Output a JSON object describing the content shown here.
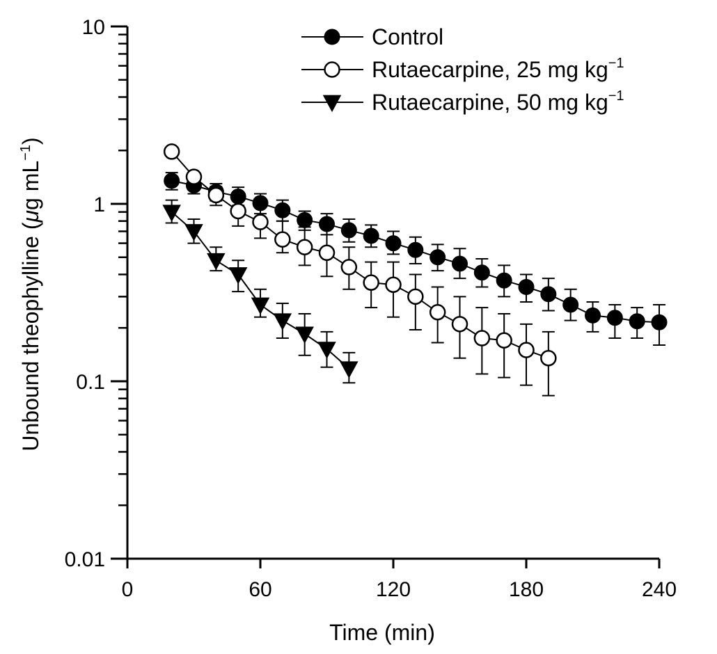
{
  "chart_data": {
    "type": "line",
    "xlabel": "Time (min)",
    "ylabel": {
      "main": "Unbound theophylline (",
      "mu": "μ",
      "unit": "g mL",
      "sup": "−1",
      "close": ")"
    },
    "xlim": [
      0,
      240
    ],
    "ylim": [
      0.01,
      10
    ],
    "yscale": "log",
    "xticks": [
      0,
      60,
      120,
      180,
      240
    ],
    "xtick_labels": [
      "0",
      "60",
      "120",
      "180",
      "240"
    ],
    "yticks": [
      0.01,
      0.1,
      1,
      10
    ],
    "ytick_labels": [
      "0.01",
      "0.1",
      "1",
      "10"
    ],
    "grid": false,
    "legend_position": "top-right",
    "series": [
      {
        "name": "Control",
        "name_sup": "",
        "marker": "filled-circle",
        "x": [
          20,
          30,
          40,
          50,
          60,
          70,
          80,
          90,
          100,
          110,
          120,
          130,
          140,
          150,
          160,
          170,
          180,
          190,
          200,
          210,
          220,
          230,
          240
        ],
        "y": [
          1.35,
          1.27,
          1.17,
          1.1,
          1.01,
          0.92,
          0.81,
          0.77,
          0.71,
          0.66,
          0.6,
          0.55,
          0.5,
          0.46,
          0.41,
          0.37,
          0.34,
          0.31,
          0.27,
          0.235,
          0.228,
          0.218,
          0.215
        ],
        "err_up": [
          1.5,
          1.4,
          1.3,
          1.24,
          1.14,
          1.05,
          0.91,
          0.88,
          0.82,
          0.76,
          0.7,
          0.65,
          0.59,
          0.56,
          0.49,
          0.45,
          0.4,
          0.38,
          0.33,
          0.28,
          0.27,
          0.26,
          0.27
        ],
        "err_down": [
          1.2,
          1.14,
          1.04,
          0.98,
          0.88,
          0.8,
          0.71,
          0.67,
          0.61,
          0.57,
          0.52,
          0.46,
          0.42,
          0.38,
          0.34,
          0.3,
          0.28,
          0.25,
          0.22,
          0.19,
          0.175,
          0.175,
          0.16
        ]
      },
      {
        "name": "Rutaecarpine, 25 mg kg",
        "name_sup": "−1",
        "marker": "open-circle",
        "x": [
          20,
          30,
          40,
          50,
          60,
          70,
          80,
          90,
          100,
          110,
          120,
          130,
          140,
          150,
          160,
          170,
          180,
          190
        ],
        "y": [
          1.97,
          1.42,
          1.12,
          0.91,
          0.79,
          0.63,
          0.57,
          0.53,
          0.44,
          0.36,
          0.35,
          0.3,
          0.245,
          0.21,
          0.175,
          0.17,
          0.15,
          0.135
        ],
        "err_up": [
          1.97,
          1.42,
          1.25,
          1.1,
          0.97,
          0.8,
          0.74,
          0.74,
          0.57,
          0.47,
          0.47,
          0.4,
          0.34,
          0.3,
          0.26,
          0.24,
          0.21,
          0.19
        ],
        "err_down": [
          1.97,
          1.42,
          0.98,
          0.75,
          0.64,
          0.53,
          0.45,
          0.39,
          0.33,
          0.26,
          0.23,
          0.195,
          0.165,
          0.135,
          0.11,
          0.105,
          0.095,
          0.083
        ]
      },
      {
        "name": "Rutaecarpine, 50 mg kg",
        "name_sup": "−1",
        "marker": "filled-triangle-down",
        "x": [
          20,
          30,
          40,
          50,
          60,
          70,
          80,
          90,
          100
        ],
        "y": [
          0.9,
          0.7,
          0.48,
          0.4,
          0.27,
          0.22,
          0.185,
          0.152,
          0.118
        ],
        "err_up": [
          1.05,
          0.82,
          0.57,
          0.48,
          0.33,
          0.275,
          0.24,
          0.19,
          0.145
        ],
        "err_down": [
          0.78,
          0.6,
          0.42,
          0.32,
          0.23,
          0.175,
          0.14,
          0.12,
          0.098
        ]
      }
    ]
  }
}
